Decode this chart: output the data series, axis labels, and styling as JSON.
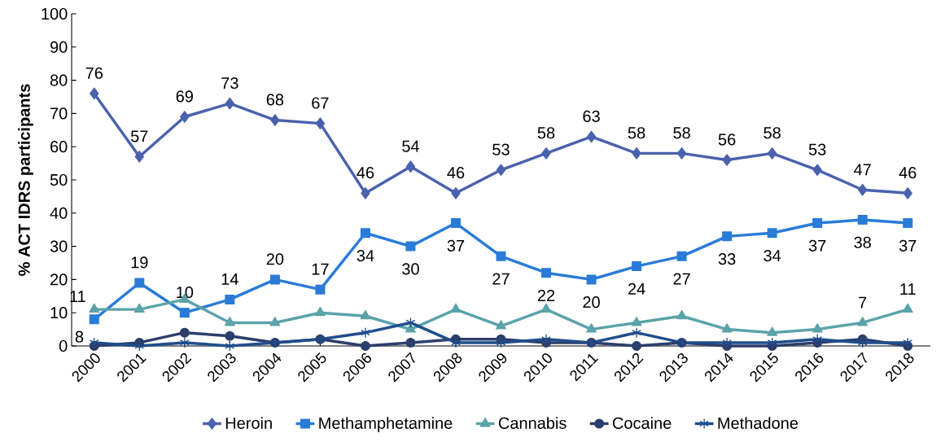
{
  "chart_data": {
    "type": "line",
    "ylabel": "% ACT IDRS participants",
    "categories": [
      "2000",
      "2001",
      "2002",
      "2003",
      "2004",
      "2005",
      "2006",
      "2007",
      "2008",
      "2009",
      "2010",
      "2011",
      "2012",
      "2013",
      "2014",
      "2015",
      "2016",
      "2017",
      "2018"
    ],
    "ylim": [
      0,
      100
    ],
    "yticks": [
      0,
      10,
      20,
      30,
      40,
      50,
      60,
      70,
      80,
      90,
      100
    ],
    "grid": false,
    "legend": "bottom",
    "series": [
      {
        "name": "Heroin",
        "color": "#4a62ad",
        "marker": "diamond",
        "values": [
          76,
          57,
          69,
          73,
          68,
          67,
          46,
          54,
          46,
          53,
          58,
          63,
          58,
          58,
          56,
          58,
          53,
          47,
          46
        ],
        "value_labels": [
          "76",
          "57",
          "69",
          "73",
          "68",
          "67",
          "46",
          "54",
          "46",
          "53",
          "58",
          "63",
          "58",
          "58",
          "56",
          "58",
          "53",
          "47",
          "46"
        ]
      },
      {
        "name": "Methamphetamine",
        "color": "#2a7bd8",
        "marker": "square",
        "values": [
          8,
          19,
          10,
          14,
          20,
          17,
          34,
          30,
          37,
          27,
          22,
          20,
          24,
          27,
          33,
          34,
          37,
          38,
          37
        ],
        "value_labels": [
          "8",
          "19",
          "10",
          "14",
          "20",
          "17",
          "34",
          "30",
          "37",
          "27",
          "22",
          "20",
          "24",
          "27",
          "33",
          "34",
          "37",
          "38",
          "37"
        ]
      },
      {
        "name": "Cannabis",
        "color": "#5ba3aa",
        "marker": "triangle",
        "values": [
          11,
          11,
          14,
          7,
          7,
          10,
          9,
          5,
          11,
          6,
          11,
          5,
          7,
          9,
          5,
          4,
          5,
          7,
          11
        ],
        "value_labels": [
          "11",
          null,
          null,
          null,
          null,
          null,
          null,
          null,
          null,
          null,
          null,
          null,
          null,
          null,
          null,
          null,
          null,
          "7",
          "11"
        ]
      },
      {
        "name": "Cocaine",
        "color": "#2c3e6b",
        "marker": "circle",
        "values": [
          0,
          1,
          4,
          3,
          1,
          2,
          0,
          1,
          2,
          2,
          1,
          1,
          0,
          1,
          0,
          0,
          1,
          2,
          0
        ]
      },
      {
        "name": "Methadone",
        "color": "#1f4e8c",
        "marker": "cross",
        "values": [
          1,
          0,
          1,
          0,
          1,
          2,
          4,
          7,
          1,
          1,
          2,
          1,
          4,
          1,
          1,
          1,
          2,
          1,
          1
        ]
      }
    ]
  }
}
